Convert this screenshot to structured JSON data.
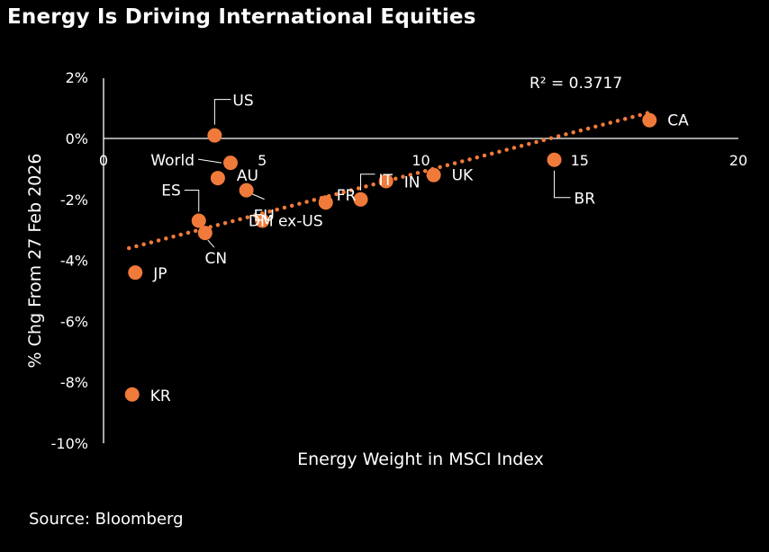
{
  "title": "Energy Is Driving International Equities",
  "source": "Source: Bloomberg",
  "colors": {
    "background": "#000000",
    "text": "#ffffff",
    "accent": "#f07a3a"
  },
  "chart_data": {
    "type": "scatter",
    "title": "Energy Is Driving International Equities",
    "xlabel": "Energy Weight in MSCI Index",
    "ylabel": "% Chg From 27 Feb 2026",
    "xlim": [
      0,
      20
    ],
    "ylim": [
      -10,
      2
    ],
    "x_ticks": [
      0,
      5,
      10,
      15,
      20
    ],
    "x_tick_labels": [
      "0",
      "5",
      "10",
      "15",
      "20"
    ],
    "y_ticks": [
      2,
      0,
      -2,
      -4,
      -6,
      -8,
      -10
    ],
    "y_tick_labels": [
      "2%",
      "0%",
      "-2%",
      "-4%",
      "-6%",
      "-8%",
      "-10%"
    ],
    "grid": false,
    "points": [
      {
        "label": "US",
        "x": 3.5,
        "y": 0.1
      },
      {
        "label": "World",
        "x": 4.0,
        "y": -0.8
      },
      {
        "label": "AU",
        "x": 3.6,
        "y": -1.3
      },
      {
        "label": "EU",
        "x": 4.5,
        "y": -1.7
      },
      {
        "label": "ES",
        "x": 3.0,
        "y": -2.7
      },
      {
        "label": "DM ex-US",
        "x": 5.0,
        "y": -2.7
      },
      {
        "label": "CN",
        "x": 3.2,
        "y": -3.1
      },
      {
        "label": "FR",
        "x": 7.0,
        "y": -2.1
      },
      {
        "label": "IT",
        "x": 8.1,
        "y": -2.0
      },
      {
        "label": "IN",
        "x": 8.9,
        "y": -1.4
      },
      {
        "label": "UK",
        "x": 10.4,
        "y": -1.2
      },
      {
        "label": "BR",
        "x": 14.2,
        "y": -0.7
      },
      {
        "label": "CA",
        "x": 17.2,
        "y": 0.6
      },
      {
        "label": "JP",
        "x": 1.0,
        "y": -4.4
      },
      {
        "label": "KR",
        "x": 0.9,
        "y": -8.4
      }
    ],
    "trendline": {
      "type": "linear",
      "x": [
        0.8,
        17.2
      ],
      "y": [
        -3.6,
        0.85
      ],
      "style": "dotted"
    },
    "annotations": [
      "R² = 0.3717"
    ]
  }
}
